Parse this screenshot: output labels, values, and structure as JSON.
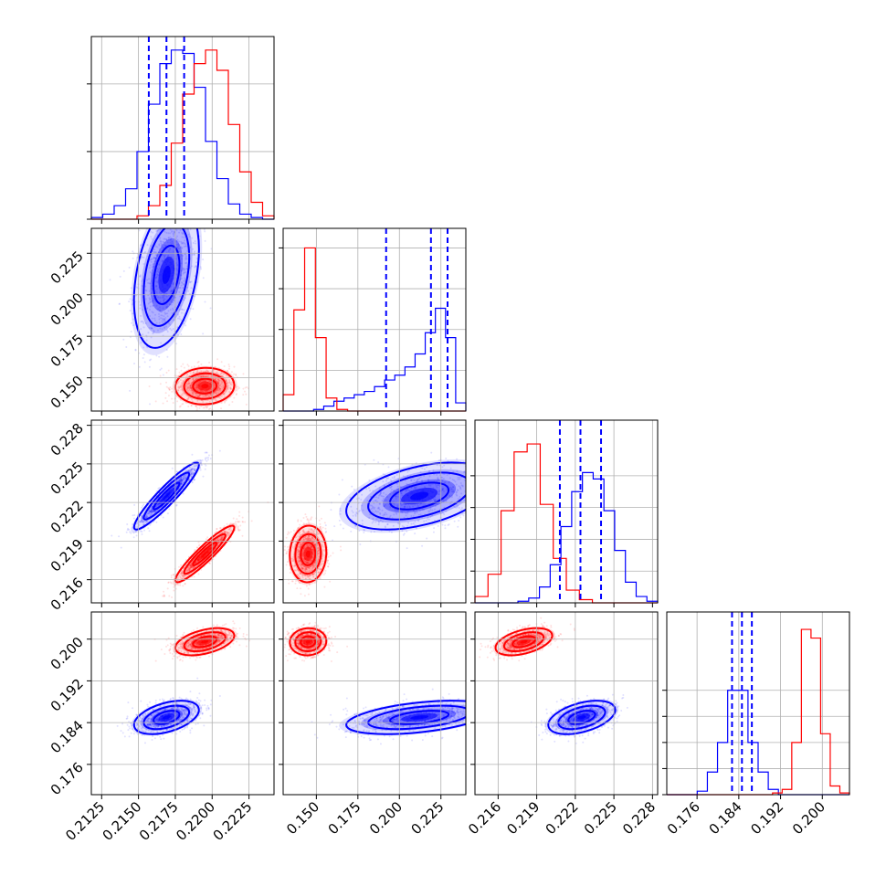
{
  "chart_data": {
    "type": "corner",
    "colors": {
      "red": "#ff0000",
      "blue": "#0000ff"
    },
    "grid": true,
    "parameters": [
      {
        "range": [
          0.2118,
          0.2242
        ],
        "ticks": [
          0.2125,
          0.215,
          0.2175,
          0.22,
          0.2225
        ],
        "tick_labels": [
          "0.2125",
          "0.2150",
          "0.2175",
          "0.2200",
          "0.2225"
        ]
      },
      {
        "range": [
          0.13,
          0.24
        ],
        "ticks": [
          0.15,
          0.175,
          0.2,
          0.225
        ],
        "tick_labels": [
          "0.150",
          "0.175",
          "0.200",
          "0.225"
        ]
      },
      {
        "range": [
          0.2142,
          0.2284
        ],
        "ticks": [
          0.216,
          0.219,
          0.222,
          0.225,
          0.228
        ],
        "tick_labels": [
          "0.216",
          "0.219",
          "0.222",
          "0.225",
          "0.228"
        ]
      },
      {
        "range": [
          0.1702,
          0.2052
        ],
        "ticks": [
          0.176,
          0.184,
          0.192,
          0.2
        ],
        "tick_labels": [
          "0.176",
          "0.184",
          "0.192",
          "0.200"
        ]
      }
    ],
    "series": [
      {
        "color": "#0000ff",
        "means": [
          0.2169,
          0.212,
          0.2225,
          0.185
        ],
        "sigmas": [
          0.0011,
          0.022,
          0.0013,
          0.0016
        ],
        "quantiles": [
          [
            0.2157,
            0.2169,
            0.2181
          ],
          [
            0.192,
            0.219,
            0.229
          ],
          [
            0.2208,
            0.2224,
            0.224
          ],
          [
            0.1827,
            0.1846,
            0.1865
          ]
        ]
      },
      {
        "color": "#ff0000",
        "means": [
          0.2195,
          0.145,
          0.218,
          0.1995
        ],
        "sigmas": [
          0.001,
          0.0055,
          0.0011,
          0.0013
        ]
      }
    ],
    "histograms": [
      {
        "blue": [
          1,
          3,
          8,
          18,
          40,
          68,
          92,
          100,
          98,
          78,
          46,
          24,
          9,
          3,
          1,
          0
        ],
        "red": [
          0,
          0,
          0,
          0,
          2,
          8,
          20,
          45,
          74,
          92,
          100,
          88,
          56,
          28,
          10,
          2
        ]
      },
      {
        "red": [
          10,
          62,
          100,
          45,
          8,
          1,
          0,
          0,
          0,
          0,
          0,
          0,
          0,
          0,
          0,
          0,
          0
        ],
        "blue": [
          0,
          0,
          0,
          1,
          3,
          6,
          8,
          10,
          12,
          15,
          19,
          22,
          27,
          35,
          48,
          63,
          45,
          5
        ]
      },
      {
        "red": [
          4,
          18,
          58,
          95,
          100,
          62,
          28,
          8,
          2,
          0,
          0,
          0,
          0,
          0
        ],
        "blue": [
          0,
          0,
          0,
          0,
          1,
          3,
          10,
          24,
          48,
          70,
          82,
          78,
          58,
          33,
          13,
          4,
          1
        ]
      },
      {
        "blue": [
          0,
          0,
          0,
          2,
          13,
          30,
          60,
          60,
          30,
          13,
          3,
          0,
          0,
          0,
          0,
          0,
          0,
          0
        ],
        "red": [
          0,
          0,
          0,
          0,
          0,
          0,
          0,
          0,
          0,
          0,
          0,
          1,
          3,
          30,
          95,
          90,
          35,
          5,
          1
        ]
      }
    ],
    "hist_ticks": [
      [
        0,
        40,
        80
      ],
      [
        0,
        25,
        50,
        75,
        100
      ],
      [
        0,
        20,
        40,
        60,
        80
      ],
      [
        0,
        15,
        30,
        45,
        60
      ]
    ],
    "hist_ymax": [
      108,
      112,
      115,
      105
    ],
    "correlations": {
      "1_0": {
        "blue": 0.35,
        "red": 0.05
      },
      "2_0": {
        "blue": 0.93,
        "red": 0.93
      },
      "2_1": {
        "blue": 0.45,
        "red": 0.05
      },
      "3_0": {
        "blue": 0.45,
        "red": 0.45
      },
      "3_1": {
        "blue": 0.45,
        "red": 0.05
      },
      "3_2": {
        "blue": 0.45,
        "red": 0.45
      }
    }
  }
}
